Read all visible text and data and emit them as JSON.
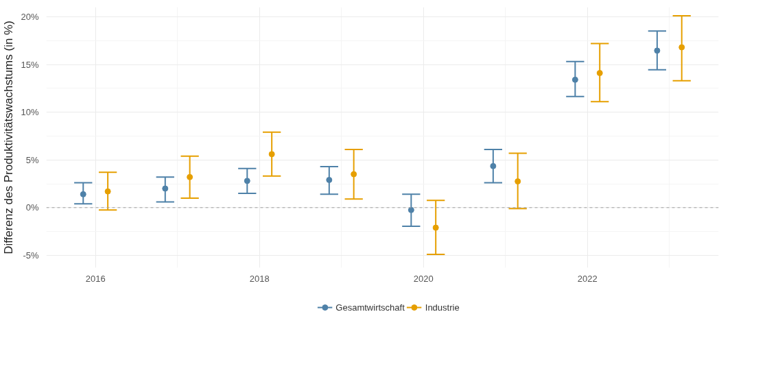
{
  "chart_data": {
    "type": "scatter",
    "ylabel": "Differenz des Produktivitätswachstums (in %)",
    "xlim": [
      2015.4,
      2023.6
    ],
    "xticks": [
      2016,
      2018,
      2020,
      2022
    ],
    "ylim": [
      -6.3,
      21
    ],
    "yticks": [
      {
        "value": -5,
        "label": "-5%"
      },
      {
        "value": 0,
        "label": "0%"
      },
      {
        "value": 5,
        "label": "5%"
      },
      {
        "value": 10,
        "label": "10%"
      },
      {
        "value": 15,
        "label": "15%"
      },
      {
        "value": 20,
        "label": "20%"
      }
    ],
    "series": [
      {
        "name": "Gesamtwirtschaft",
        "color": "#4e81a8",
        "x": [
          2015.85,
          2016.85,
          2017.85,
          2018.85,
          2019.85,
          2020.85,
          2021.85,
          2022.85
        ],
        "values": [
          1.4,
          2.0,
          2.8,
          2.9,
          -0.25,
          4.35,
          13.4,
          16.45
        ],
        "errors": [
          [
            0.4,
            2.6
          ],
          [
            0.6,
            3.2
          ],
          [
            1.5,
            4.1
          ],
          [
            1.4,
            4.3
          ],
          [
            -1.95,
            1.4
          ],
          [
            2.6,
            6.1
          ],
          [
            11.65,
            15.3
          ],
          [
            14.45,
            18.5
          ]
        ]
      },
      {
        "name": "Industrie",
        "color": "#e69f00",
        "x": [
          2016.15,
          2017.15,
          2018.15,
          2019.15,
          2020.15,
          2021.15,
          2022.15,
          2023.15
        ],
        "values": [
          1.7,
          3.2,
          5.6,
          3.5,
          -2.1,
          2.75,
          14.1,
          16.8
        ],
        "errors": [
          [
            -0.25,
            3.7
          ],
          [
            1.0,
            5.4
          ],
          [
            3.3,
            7.9
          ],
          [
            0.9,
            6.1
          ],
          [
            -4.9,
            0.75
          ],
          [
            -0.1,
            5.7
          ],
          [
            11.1,
            17.2
          ],
          [
            13.3,
            20.1
          ]
        ]
      }
    ],
    "ref_lines": [
      {
        "axis": "y",
        "value": 0,
        "color": "#a0a0a0",
        "line_style": "dashed"
      }
    ],
    "grid": true,
    "legend": "bottom",
    "marker": "circle"
  }
}
